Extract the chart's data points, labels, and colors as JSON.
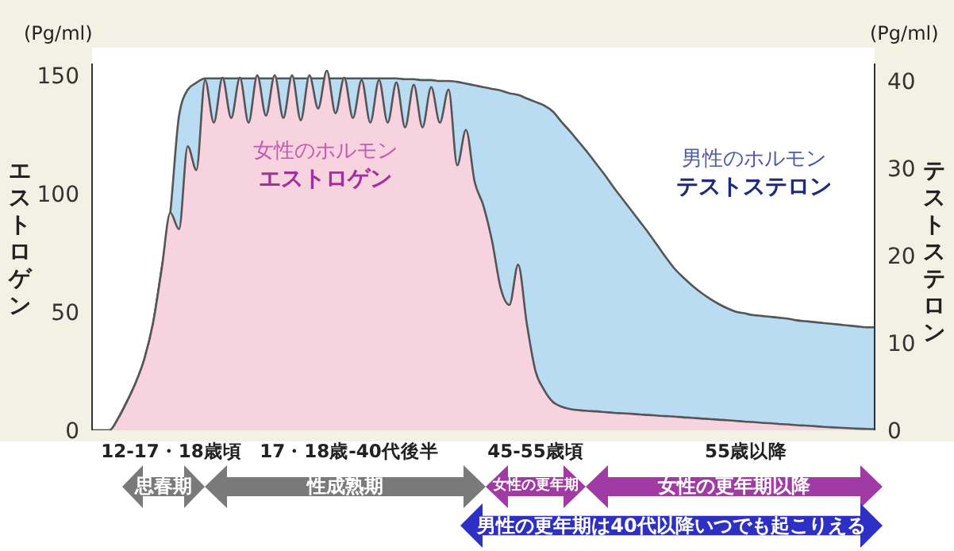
{
  "chart_data": {
    "type": "area",
    "ylabel": "エストロゲン",
    "y2label": "テストステロン",
    "categories": [
      null,
      null,
      null,
      null,
      null,
      null,
      null,
      null,
      null,
      null,
      null,
      null,
      null,
      null,
      null,
      null,
      null,
      null,
      null,
      null,
      null,
      null,
      null,
      null,
      null,
      null,
      null,
      null,
      null,
      null,
      null,
      null,
      null,
      null,
      null,
      null,
      null,
      null,
      null,
      null,
      null,
      null,
      null,
      null,
      null,
      null,
      null,
      null,
      null,
      null,
      null,
      null,
      null,
      null,
      null,
      null,
      null,
      null,
      null,
      null,
      null,
      null,
      null,
      null,
      null,
      null,
      null,
      null,
      null,
      null,
      null,
      null,
      null,
      null,
      null,
      null,
      null,
      null,
      null,
      null,
      null,
      null,
      null,
      null,
      null,
      null,
      null,
      null,
      null,
      null,
      null
    ],
    "series": [
      {
        "name": "テストステロン",
        "color": "#b9dcf2",
        "axis": "y2",
        "values": [
          0,
          0,
          0,
          1.4,
          3.3,
          5.4,
          8.1,
          12.2,
          18.5,
          25,
          36,
          39,
          39.8,
          40.3,
          40.3,
          40.3,
          40.3,
          40.3,
          40.3,
          40.3,
          40.3,
          40.3,
          40.3,
          40.3,
          40.3,
          40.3,
          40.3,
          40.3,
          40.3,
          40.3,
          40.3,
          40.3,
          40.3,
          40.3,
          40.3,
          40.3,
          40.2,
          40.2,
          40.1,
          40.1,
          40,
          40,
          39.9,
          39.7,
          39.5,
          39.3,
          39.1,
          38.9,
          38.6,
          38.4,
          38,
          37.6,
          37.2,
          36.5,
          35.3,
          34.2,
          33,
          31.8,
          30.5,
          29.2,
          27.8,
          26.5,
          25.2,
          23.9,
          22.6,
          21.2,
          19.8,
          18.5,
          17.5,
          16.6,
          15.8,
          15.1,
          14.5,
          14,
          13.6,
          13.4,
          13.2,
          13.1,
          13,
          12.9,
          12.8,
          12.6,
          12.5,
          12.4,
          12.3,
          12.2,
          12.1,
          12,
          11.9,
          11.8,
          11.8
        ]
      },
      {
        "name": "エストロゲン",
        "color": "#f6d3df",
        "values": [
          0,
          0,
          0,
          5,
          12,
          20,
          30,
          45,
          68,
          92,
          85,
          120,
          110,
          148,
          130,
          149,
          132,
          149,
          130,
          150,
          133,
          150,
          132,
          150,
          131,
          150,
          136,
          152,
          134,
          149,
          132,
          148,
          130,
          148,
          130,
          147,
          128,
          146,
          128,
          145,
          130,
          144,
          112,
          127,
          105,
          95,
          80,
          60,
          53,
          70,
          45,
          25,
          17,
          12,
          10,
          9,
          8.5,
          8.2,
          8,
          7.7,
          7.4,
          7.2,
          7,
          6.7,
          6.5,
          6.2,
          6,
          5.8,
          5.5,
          5.3,
          5,
          4.8,
          4.5,
          4.3,
          4,
          3.7,
          3.5,
          3.2,
          3,
          2.7,
          2.5,
          2.2,
          2,
          1.8,
          1.5,
          1.3,
          1.1,
          0.9,
          0.7,
          0.6,
          0.5
        ]
      }
    ],
    "ylim": [
      0,
      155
    ],
    "yticks": [
      0,
      50,
      100,
      150
    ],
    "y2lim": [
      0,
      42
    ],
    "y2ticks": [
      0,
      10,
      20,
      30,
      40
    ],
    "tick_labels": "y",
    "legend": false,
    "grid": false,
    "annotations": [
      "(Pg/ml)",
      "(Pg/ml)",
      "女性のホルモン",
      "男性のホルモン",
      "12-17・18歳頃",
      "17・18歳-40代後半",
      "45-55歳頃",
      "55歳以降",
      "思春期",
      "性成熟期",
      "女性の更年期",
      "女性の更年期以降",
      "男性の更年期は40代以降いつでも起こりえる"
    ]
  }
}
